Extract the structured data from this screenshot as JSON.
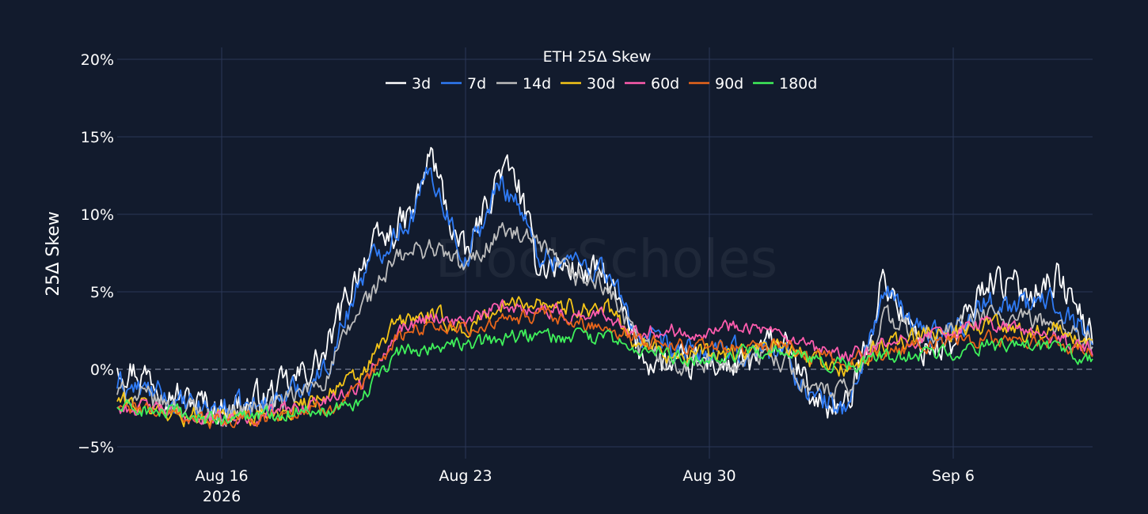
{
  "chart_data": {
    "type": "line",
    "title": "ETH 25Δ Skew",
    "ylabel": "25Δ Skew",
    "xlabel": "",
    "watermark": "BlockScholes",
    "x_range": [
      "2026-08-13",
      "2026-09-10"
    ],
    "ylim": [
      -0.05,
      0.2
    ],
    "y_ticks": [
      -0.05,
      0,
      0.05,
      0.1,
      0.15,
      0.2
    ],
    "y_tick_labels": [
      "−5%",
      "0%",
      "5%",
      "10%",
      "15%",
      "20%"
    ],
    "x_ticks": [
      "2026-08-16",
      "2026-08-23",
      "2026-08-30",
      "2026-09-06"
    ],
    "x_tick_labels": [
      [
        "Aug 16",
        "2026"
      ],
      [
        "Aug 23"
      ],
      [
        "Aug 30"
      ],
      [
        "Sep 6"
      ]
    ],
    "grid": true,
    "zero_line": "dashed",
    "legend_position": "top-center",
    "background": "#121b2d",
    "grid_color": "#2b3757",
    "series": [
      {
        "name": "3d",
        "color": "#ffffff",
        "noise": 0.009,
        "x": [
          "2026-08-13",
          "2026-08-14",
          "2026-08-15",
          "2026-08-16",
          "2026-08-17",
          "2026-08-18",
          "2026-08-19",
          "2026-08-20",
          "2026-08-21",
          "2026-08-21T12:00",
          "2026-08-22",
          "2026-08-22T12:00",
          "2026-08-23",
          "2026-08-24",
          "2026-08-24T12:00",
          "2026-08-25",
          "2026-08-26",
          "2026-08-27",
          "2026-08-28",
          "2026-08-29",
          "2026-08-30",
          "2026-08-31",
          "2026-09-01",
          "2026-09-02",
          "2026-09-03",
          "2026-09-04",
          "2026-09-05",
          "2026-09-06",
          "2026-09-07",
          "2026-09-08",
          "2026-09-09",
          "2026-09-10"
        ],
        "y": [
          0.005,
          -0.005,
          -0.02,
          -0.025,
          -0.02,
          -0.01,
          0.01,
          0.07,
          0.09,
          0.1,
          0.14,
          0.1,
          0.07,
          0.13,
          0.12,
          0.07,
          0.065,
          0.06,
          0.01,
          0.0,
          0.005,
          0.0,
          0.02,
          -0.02,
          -0.025,
          0.06,
          0.015,
          0.015,
          0.06,
          0.05,
          0.06,
          0.02
        ]
      },
      {
        "name": "7d",
        "color": "#2f7bf5",
        "noise": 0.007,
        "x": [
          "2026-08-13",
          "2026-08-14",
          "2026-08-15",
          "2026-08-16",
          "2026-08-17",
          "2026-08-18",
          "2026-08-19",
          "2026-08-20",
          "2026-08-21",
          "2026-08-21T12:00",
          "2026-08-22",
          "2026-08-22T12:00",
          "2026-08-23",
          "2026-08-24",
          "2026-08-24T12:00",
          "2026-08-25",
          "2026-08-26",
          "2026-08-27",
          "2026-08-28",
          "2026-08-29",
          "2026-08-30",
          "2026-08-31",
          "2026-09-01",
          "2026-09-02",
          "2026-09-03",
          "2026-09-04",
          "2026-09-05",
          "2026-09-06",
          "2026-09-07",
          "2026-09-08",
          "2026-09-09",
          "2026-09-10"
        ],
        "y": [
          -0.01,
          -0.015,
          -0.025,
          -0.025,
          -0.025,
          -0.015,
          0.0,
          0.06,
          0.09,
          0.1,
          0.13,
          0.1,
          0.07,
          0.12,
          0.11,
          0.075,
          0.07,
          0.065,
          0.02,
          0.01,
          0.01,
          0.01,
          0.015,
          -0.02,
          -0.025,
          0.05,
          0.025,
          0.025,
          0.045,
          0.04,
          0.045,
          0.02
        ]
      },
      {
        "name": "14d",
        "color": "#bdbdbd",
        "noise": 0.006,
        "x": [
          "2026-08-13",
          "2026-08-14",
          "2026-08-15",
          "2026-08-16",
          "2026-08-17",
          "2026-08-18",
          "2026-08-19",
          "2026-08-20",
          "2026-08-21",
          "2026-08-22",
          "2026-08-23",
          "2026-08-24",
          "2026-08-25",
          "2026-08-26",
          "2026-08-27",
          "2026-08-28",
          "2026-08-29",
          "2026-08-30",
          "2026-08-31",
          "2026-09-01",
          "2026-09-02",
          "2026-09-03",
          "2026-09-04",
          "2026-09-05",
          "2026-09-06",
          "2026-09-07",
          "2026-09-08",
          "2026-09-09",
          "2026-09-10"
        ],
        "y": [
          -0.015,
          -0.02,
          -0.025,
          -0.03,
          -0.025,
          -0.02,
          -0.005,
          0.04,
          0.07,
          0.08,
          0.065,
          0.09,
          0.08,
          0.06,
          0.055,
          0.015,
          0.005,
          0.005,
          0.005,
          0.01,
          -0.015,
          -0.015,
          0.035,
          0.02,
          0.025,
          0.035,
          0.03,
          0.03,
          0.015
        ]
      },
      {
        "name": "30d",
        "color": "#f5c518",
        "noise": 0.005,
        "x": [
          "2026-08-13",
          "2026-08-14",
          "2026-08-15",
          "2026-08-16",
          "2026-08-17",
          "2026-08-18",
          "2026-08-19",
          "2026-08-20",
          "2026-08-21",
          "2026-08-22",
          "2026-08-23",
          "2026-08-24",
          "2026-08-25",
          "2026-08-26",
          "2026-08-27",
          "2026-08-28",
          "2026-08-29",
          "2026-08-30",
          "2026-08-31",
          "2026-09-01",
          "2026-09-02",
          "2026-09-03",
          "2026-09-04",
          "2026-09-05",
          "2026-09-06",
          "2026-09-07",
          "2026-09-08",
          "2026-09-09",
          "2026-09-10"
        ],
        "y": [
          -0.02,
          -0.025,
          -0.03,
          -0.03,
          -0.03,
          -0.025,
          -0.015,
          -0.005,
          0.03,
          0.035,
          0.025,
          0.04,
          0.045,
          0.04,
          0.04,
          0.015,
          0.01,
          0.01,
          0.01,
          0.015,
          0.005,
          0.0,
          0.015,
          0.02,
          0.025,
          0.03,
          0.025,
          0.025,
          0.012
        ]
      },
      {
        "name": "60d",
        "color": "#ff5cae",
        "noise": 0.004,
        "x": [
          "2026-08-13",
          "2026-08-14",
          "2026-08-15",
          "2026-08-16",
          "2026-08-17",
          "2026-08-18",
          "2026-08-19",
          "2026-08-20",
          "2026-08-21",
          "2026-08-22",
          "2026-08-23",
          "2026-08-24",
          "2026-08-25",
          "2026-08-26",
          "2026-08-27",
          "2026-08-28",
          "2026-08-29",
          "2026-08-30",
          "2026-08-31",
          "2026-09-01",
          "2026-09-02",
          "2026-09-03",
          "2026-09-04",
          "2026-09-05",
          "2026-09-06",
          "2026-09-07",
          "2026-09-08",
          "2026-09-09",
          "2026-09-10"
        ],
        "y": [
          -0.025,
          -0.025,
          -0.03,
          -0.033,
          -0.03,
          -0.025,
          -0.02,
          -0.01,
          0.025,
          0.035,
          0.03,
          0.04,
          0.04,
          0.035,
          0.035,
          0.025,
          0.025,
          0.025,
          0.03,
          0.02,
          0.012,
          0.008,
          0.015,
          0.02,
          0.025,
          0.03,
          0.025,
          0.02,
          0.012
        ]
      },
      {
        "name": "90d",
        "color": "#e8651a",
        "noise": 0.004,
        "x": [
          "2026-08-13",
          "2026-08-14",
          "2026-08-15",
          "2026-08-16",
          "2026-08-17",
          "2026-08-18",
          "2026-08-19",
          "2026-08-20",
          "2026-08-21",
          "2026-08-22",
          "2026-08-23",
          "2026-08-24",
          "2026-08-25",
          "2026-08-26",
          "2026-08-27",
          "2026-08-28",
          "2026-08-29",
          "2026-08-30",
          "2026-08-31",
          "2026-09-01",
          "2026-09-02",
          "2026-09-03",
          "2026-09-04",
          "2026-09-05",
          "2026-09-06",
          "2026-09-07",
          "2026-09-08",
          "2026-09-09",
          "2026-09-10"
        ],
        "y": [
          -0.025,
          -0.027,
          -0.03,
          -0.035,
          -0.032,
          -0.028,
          -0.025,
          -0.015,
          0.02,
          0.03,
          0.025,
          0.03,
          0.035,
          0.03,
          0.028,
          0.02,
          0.015,
          0.015,
          0.015,
          0.015,
          0.008,
          0.005,
          0.01,
          0.015,
          0.018,
          0.02,
          0.018,
          0.016,
          0.01
        ]
      },
      {
        "name": "180d",
        "color": "#3ff05a",
        "noise": 0.004,
        "x": [
          "2026-08-13",
          "2026-08-14",
          "2026-08-15",
          "2026-08-16",
          "2026-08-17",
          "2026-08-18",
          "2026-08-19",
          "2026-08-20",
          "2026-08-21",
          "2026-08-22",
          "2026-08-23",
          "2026-08-24",
          "2026-08-25",
          "2026-08-26",
          "2026-08-27",
          "2026-08-28",
          "2026-08-29",
          "2026-08-30",
          "2026-08-31",
          "2026-09-01",
          "2026-09-02",
          "2026-09-03",
          "2026-09-04",
          "2026-09-05",
          "2026-09-06",
          "2026-09-07",
          "2026-09-08",
          "2026-09-09",
          "2026-09-10"
        ],
        "y": [
          -0.025,
          -0.027,
          -0.03,
          -0.033,
          -0.03,
          -0.027,
          -0.025,
          -0.02,
          0.01,
          0.015,
          0.015,
          0.02,
          0.022,
          0.02,
          0.02,
          0.012,
          0.008,
          0.008,
          0.01,
          0.01,
          0.005,
          0.003,
          0.008,
          0.01,
          0.012,
          0.015,
          0.013,
          0.012,
          0.008
        ]
      }
    ]
  }
}
